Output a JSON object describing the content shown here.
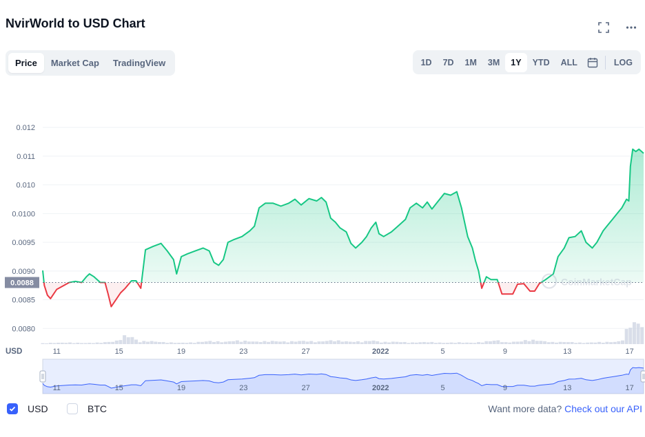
{
  "header": {
    "title": "NvirWorld to USD Chart",
    "fullscreen_icon": "fullscreen-icon",
    "more_icon": "more-icon"
  },
  "tabs": [
    {
      "label": "Price",
      "active": true
    },
    {
      "label": "Market Cap",
      "active": false
    },
    {
      "label": "TradingView",
      "active": false
    }
  ],
  "ranges": [
    {
      "label": "1D",
      "active": false
    },
    {
      "label": "7D",
      "active": false
    },
    {
      "label": "1M",
      "active": false
    },
    {
      "label": "3M",
      "active": false
    },
    {
      "label": "1Y",
      "active": true
    },
    {
      "label": "YTD",
      "active": false
    },
    {
      "label": "ALL",
      "active": false
    }
  ],
  "calendar_icon": "calendar-icon",
  "log_label": "LOG",
  "watermark": "CoinMarketCap",
  "usd_axis_label": "USD",
  "legend": [
    {
      "label": "USD",
      "checked": true
    },
    {
      "label": "BTC",
      "checked": false
    }
  ],
  "api": {
    "text": "Want more data?",
    "link": "Check out our API"
  },
  "colors": {
    "up": "#16c784",
    "down": "#ea3943",
    "navigator": "#3861fb",
    "volume": "#cfd6e4"
  },
  "chart_data": {
    "type": "area",
    "ylim": [
      0.00774,
      0.01228
    ],
    "y_ticks": [
      {
        "value": 0.008,
        "label": "0.0080"
      },
      {
        "value": 0.0085,
        "label": "0.0085"
      },
      {
        "value": 0.009,
        "label": "0.0090"
      },
      {
        "value": 0.0095,
        "label": "0.0095"
      },
      {
        "value": 0.01,
        "label": "0.0100"
      },
      {
        "value": 0.0105,
        "label": "0.010"
      },
      {
        "value": 0.011,
        "label": "0.011"
      },
      {
        "value": 0.0115,
        "label": "0.012"
      }
    ],
    "x_ticks": [
      {
        "t": 0.2,
        "label": "11"
      },
      {
        "t": 4.2,
        "label": "15"
      },
      {
        "t": 8.2,
        "label": "19"
      },
      {
        "t": 12.2,
        "label": "23"
      },
      {
        "t": 16.2,
        "label": "27"
      },
      {
        "t": 21.0,
        "label": "2022"
      },
      {
        "t": 25.0,
        "label": "5"
      },
      {
        "t": 29.0,
        "label": "9"
      },
      {
        "t": 33.0,
        "label": "13"
      },
      {
        "t": 37.0,
        "label": "17"
      }
    ],
    "x_range": [
      -0.7,
      37.9
    ],
    "reference_price": 0.0088,
    "reference_label": "0.0088",
    "price": [
      [
        -0.7,
        0.00901
      ],
      [
        -0.6,
        0.00875
      ],
      [
        -0.4,
        0.00858
      ],
      [
        -0.2,
        0.00852
      ],
      [
        0,
        0.0086
      ],
      [
        0.2,
        0.00868
      ],
      [
        0.6,
        0.00874
      ],
      [
        1,
        0.0088
      ],
      [
        1.4,
        0.00882
      ],
      [
        1.8,
        0.0088
      ],
      [
        2.1,
        0.0089
      ],
      [
        2.3,
        0.00895
      ],
      [
        2.6,
        0.0089
      ],
      [
        3,
        0.0088
      ],
      [
        3.3,
        0.0088
      ],
      [
        3.5,
        0.0086
      ],
      [
        3.7,
        0.00838
      ],
      [
        4,
        0.0085
      ],
      [
        4.3,
        0.00862
      ],
      [
        4.6,
        0.0087
      ],
      [
        5,
        0.00883
      ],
      [
        5.3,
        0.00883
      ],
      [
        5.6,
        0.0087
      ],
      [
        5.9,
        0.00937
      ],
      [
        6.4,
        0.00943
      ],
      [
        6.9,
        0.00948
      ],
      [
        7.3,
        0.00935
      ],
      [
        7.7,
        0.0092
      ],
      [
        7.9,
        0.00895
      ],
      [
        8.2,
        0.00925
      ],
      [
        8.6,
        0.0093
      ],
      [
        9.1,
        0.00935
      ],
      [
        9.6,
        0.0094
      ],
      [
        10,
        0.00935
      ],
      [
        10.3,
        0.00915
      ],
      [
        10.6,
        0.0091
      ],
      [
        10.9,
        0.0092
      ],
      [
        11.2,
        0.0095
      ],
      [
        11.6,
        0.00955
      ],
      [
        12.1,
        0.0096
      ],
      [
        12.6,
        0.0097
      ],
      [
        12.9,
        0.00978
      ],
      [
        13.2,
        0.0101
      ],
      [
        13.6,
        0.01018
      ],
      [
        14.1,
        0.01018
      ],
      [
        14.6,
        0.01013
      ],
      [
        15.1,
        0.01018
      ],
      [
        15.5,
        0.01025
      ],
      [
        15.9,
        0.01015
      ],
      [
        16.4,
        0.01026
      ],
      [
        16.9,
        0.01022
      ],
      [
        17.2,
        0.01028
      ],
      [
        17.5,
        0.0102
      ],
      [
        17.8,
        0.00992
      ],
      [
        18.1,
        0.00985
      ],
      [
        18.4,
        0.00975
      ],
      [
        18.8,
        0.00968
      ],
      [
        19.1,
        0.00948
      ],
      [
        19.4,
        0.0094
      ],
      [
        19.8,
        0.0095
      ],
      [
        20.1,
        0.0096
      ],
      [
        20.4,
        0.00975
      ],
      [
        20.7,
        0.00985
      ],
      [
        20.9,
        0.00965
      ],
      [
        21.2,
        0.0096
      ],
      [
        21.7,
        0.00968
      ],
      [
        22.2,
        0.0098
      ],
      [
        22.6,
        0.0099
      ],
      [
        22.9,
        0.0101
      ],
      [
        23.3,
        0.01018
      ],
      [
        23.7,
        0.0101
      ],
      [
        24,
        0.0102
      ],
      [
        24.3,
        0.01008
      ],
      [
        24.6,
        0.01018
      ],
      [
        25.1,
        0.01035
      ],
      [
        25.5,
        0.01032
      ],
      [
        25.9,
        0.01038
      ],
      [
        26.2,
        0.0101
      ],
      [
        26.4,
        0.00985
      ],
      [
        26.6,
        0.0096
      ],
      [
        26.9,
        0.0094
      ],
      [
        27.1,
        0.00918
      ],
      [
        27.3,
        0.009
      ],
      [
        27.5,
        0.0087
      ],
      [
        27.8,
        0.0089
      ],
      [
        28.1,
        0.00885
      ],
      [
        28.5,
        0.00885
      ],
      [
        28.8,
        0.0086
      ],
      [
        29.1,
        0.0086
      ],
      [
        29.5,
        0.0086
      ],
      [
        29.8,
        0.00877
      ],
      [
        30.2,
        0.00878
      ],
      [
        30.6,
        0.00865
      ],
      [
        30.9,
        0.00865
      ],
      [
        31.2,
        0.00878
      ],
      [
        31.6,
        0.00885
      ],
      [
        32.1,
        0.00895
      ],
      [
        32.4,
        0.00925
      ],
      [
        32.8,
        0.0094
      ],
      [
        33.1,
        0.00958
      ],
      [
        33.5,
        0.0096
      ],
      [
        33.9,
        0.0097
      ],
      [
        34.2,
        0.0095
      ],
      [
        34.6,
        0.0094
      ],
      [
        34.9,
        0.0095
      ],
      [
        35.3,
        0.0097
      ],
      [
        35.6,
        0.0098
      ],
      [
        35.9,
        0.0099
      ],
      [
        36.2,
        0.01
      ],
      [
        36.5,
        0.0101
      ],
      [
        36.8,
        0.01025
      ],
      [
        36.95,
        0.01022
      ],
      [
        37.05,
        0.01082
      ],
      [
        37.2,
        0.01112
      ],
      [
        37.4,
        0.01108
      ],
      [
        37.6,
        0.01112
      ],
      [
        37.9,
        0.01105
      ]
    ],
    "volume": [
      [
        -0.7,
        0.08
      ],
      [
        0,
        0.12
      ],
      [
        1,
        0.14
      ],
      [
        2,
        0.1
      ],
      [
        3,
        0.14
      ],
      [
        4,
        0.25
      ],
      [
        4.5,
        0.75
      ],
      [
        5,
        0.7
      ],
      [
        5.5,
        0.2
      ],
      [
        6,
        0.3
      ],
      [
        7,
        0.18
      ],
      [
        8,
        0.12
      ],
      [
        9,
        0.15
      ],
      [
        10,
        0.28
      ],
      [
        11,
        0.2
      ],
      [
        11.5,
        0.3
      ],
      [
        12,
        0.32
      ],
      [
        13,
        0.22
      ],
      [
        14,
        0.28
      ],
      [
        15,
        0.22
      ],
      [
        16,
        0.3
      ],
      [
        17,
        0.22
      ],
      [
        17.5,
        0.3
      ],
      [
        18,
        0.35
      ],
      [
        19,
        0.22
      ],
      [
        20,
        0.25
      ],
      [
        20.5,
        0.35
      ],
      [
        21,
        0.18
      ],
      [
        22,
        0.22
      ],
      [
        23,
        0.14
      ],
      [
        24,
        0.2
      ],
      [
        25,
        0.12
      ],
      [
        26,
        0.16
      ],
      [
        27,
        0.12
      ],
      [
        28,
        0.28
      ],
      [
        28.5,
        0.35
      ],
      [
        29,
        0.16
      ],
      [
        30,
        0.25
      ],
      [
        30.5,
        0.4
      ],
      [
        31,
        0.35
      ],
      [
        32,
        0.18
      ],
      [
        33,
        0.2
      ],
      [
        34,
        0.12
      ],
      [
        35,
        0.18
      ],
      [
        36,
        0.2
      ],
      [
        36.5,
        0.28
      ],
      [
        37,
        1.9
      ],
      [
        37.5,
        1.95
      ],
      [
        37.9,
        1.7
      ]
    ]
  }
}
